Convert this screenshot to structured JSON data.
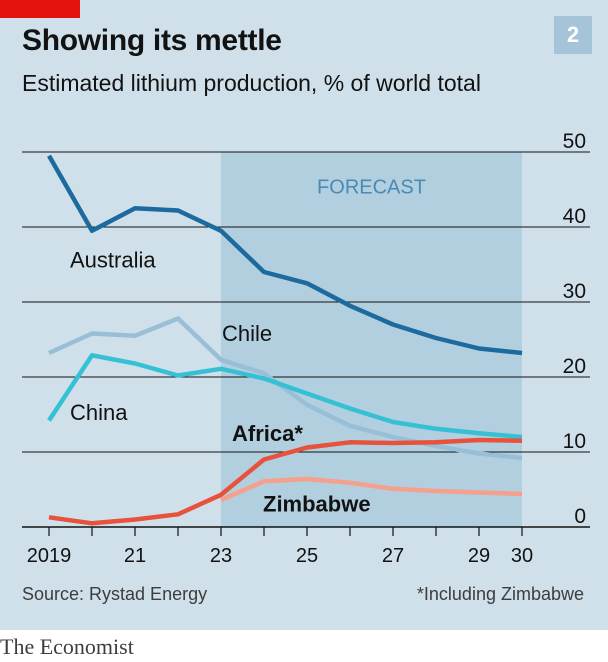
{
  "header": {
    "title": "Showing its mettle",
    "subtitle": "Estimated lithium production, % of world total",
    "badge": "2"
  },
  "footer": {
    "source": "Source: Rystad Energy",
    "note": "*Including Zimbabwe",
    "brand": "The Economist"
  },
  "colors": {
    "background": "#cfe0ea",
    "forecast_shade": "#b2cfe0",
    "australia": "#1d6b9e",
    "chile": "#98bfd6",
    "china": "#35c1d3",
    "africa": "#e8523d",
    "zimbabwe": "#f4a08a",
    "brand_red": "#e3120b"
  },
  "chart_data": {
    "type": "line",
    "x": [
      2019,
      2020,
      2021,
      2022,
      2023,
      2024,
      2025,
      2026,
      2027,
      2028,
      2029,
      2030
    ],
    "x_tick_values": [
      2019,
      2021,
      2023,
      2025,
      2027,
      2029,
      2030
    ],
    "x_tick_labels": [
      "2019",
      "21",
      "23",
      "25",
      "27",
      "29",
      "30"
    ],
    "y_ticks": [
      0,
      10,
      20,
      30,
      40,
      50
    ],
    "ylim": [
      0,
      50
    ],
    "forecast_range": [
      2023,
      2030
    ],
    "forecast_label": "FORECAST",
    "grid": true,
    "series": [
      {
        "name": "Australia",
        "color": "#1d6b9e",
        "values": [
          49.5,
          39.5,
          42.5,
          42.2,
          39.5,
          34,
          32.5,
          29.5,
          27,
          25.2,
          23.8,
          23.2
        ]
      },
      {
        "name": "Chile",
        "color": "#98bfd6",
        "values": [
          23.2,
          25.8,
          25.5,
          27.8,
          22.3,
          20.5,
          16.3,
          13.5,
          12,
          10.8,
          9.8,
          9.2
        ]
      },
      {
        "name": "China",
        "color": "#35c1d3",
        "values": [
          14.2,
          22.9,
          21.8,
          20.2,
          21.1,
          19.8,
          17.8,
          15.8,
          14,
          13.1,
          12.5,
          12
        ]
      },
      {
        "name": "Africa*",
        "color": "#e8523d",
        "values": [
          1.3,
          0.5,
          1.0,
          1.7,
          4.3,
          9.0,
          10.6,
          11.3,
          11.2,
          11.3,
          11.6,
          11.5
        ]
      },
      {
        "name": "Zimbabwe",
        "color": "#f4a08a",
        "values": [
          null,
          null,
          null,
          null,
          3.6,
          6.1,
          6.4,
          5.9,
          5.1,
          4.8,
          4.6,
          4.4
        ]
      }
    ],
    "series_labels": [
      "Australia",
      "Chile",
      "China",
      "Africa*",
      "Zimbabwe"
    ]
  }
}
